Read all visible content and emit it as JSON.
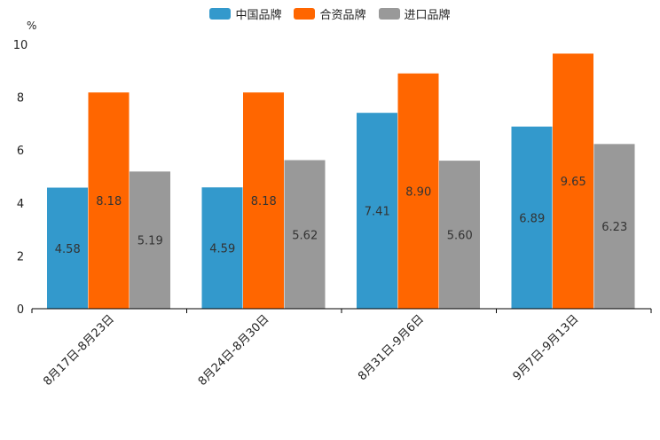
{
  "chart_data": {
    "type": "bar",
    "title": "",
    "xlabel": "",
    "ylabel": "%",
    "ylim": [
      0,
      10
    ],
    "yticks": [
      0,
      2,
      4,
      6,
      8,
      10
    ],
    "legend_position": "top-center",
    "grid": false,
    "categories": [
      "8月17日-8月23日",
      "8月24日-8月30日",
      "8月31日-9月6日",
      "9月7日-9月13日"
    ],
    "series": [
      {
        "name": "中国品牌",
        "color": "#3399cc",
        "values": [
          4.58,
          4.59,
          7.41,
          6.89
        ],
        "labels": [
          "4.58",
          "4.59",
          "7.41",
          "6.89"
        ]
      },
      {
        "name": "合资品牌",
        "color": "#ff6600",
        "values": [
          8.18,
          8.18,
          8.9,
          9.65
        ],
        "labels": [
          "8.18",
          "8.18",
          "8.90",
          "9.65"
        ]
      },
      {
        "name": "进口品牌",
        "color": "#999999",
        "values": [
          5.19,
          5.62,
          5.6,
          6.23
        ],
        "labels": [
          "5.19",
          "5.62",
          "5.60",
          "6.23"
        ]
      }
    ]
  }
}
